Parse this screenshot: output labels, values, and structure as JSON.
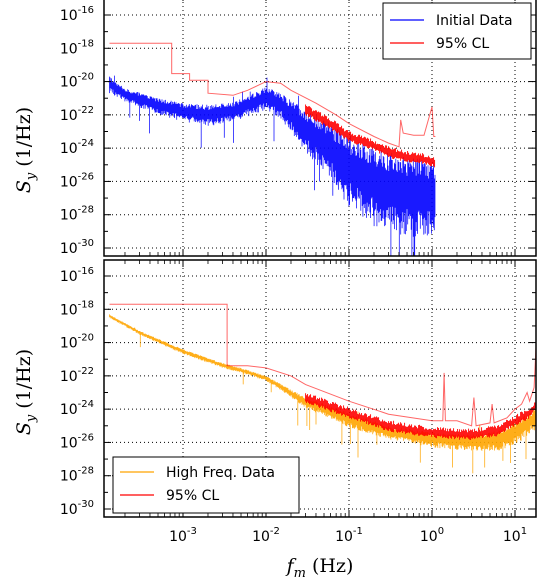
{
  "chart_data": [
    {
      "type": "line",
      "panel": "top",
      "xscale": "log",
      "yscale": "log",
      "xlim": [
        0.00013,
        1.2
      ],
      "ylim": [
        1e-30,
        1e-16
      ],
      "ylabel": "S_y (1/Hz)",
      "grid": true,
      "legend_position": "top-right",
      "y_ticks": [
        "10^-16",
        "10^-18",
        "10^-20",
        "10^-22",
        "10^-24",
        "10^-26",
        "10^-28",
        "10^-30"
      ],
      "series": [
        {
          "name": "Initial Data",
          "color": "#0000ff",
          "upper": [
            [
              0.00013,
              2e-20
            ],
            [
              0.0002,
              4e-21
            ],
            [
              0.0005,
              1e-21
            ],
            [
              0.001,
              5e-22
            ],
            [
              0.002,
              4e-22
            ],
            [
              0.004,
              6e-22
            ],
            [
              0.007,
              2e-21
            ],
            [
              0.01,
              5e-21
            ],
            [
              0.015,
              2e-21
            ],
            [
              0.03,
              2e-22
            ],
            [
              0.06,
              3e-23
            ],
            [
              0.1,
              5e-24
            ],
            [
              0.2,
              1.5e-24
            ],
            [
              0.3,
              6e-25
            ],
            [
              0.4,
              4e-25
            ],
            [
              0.7,
              2.5e-25
            ],
            [
              1.1,
              1.5e-25
            ]
          ],
          "lower": [
            [
              0.00013,
              2e-21
            ],
            [
              0.0002,
              6e-22
            ],
            [
              0.0005,
              1e-22
            ],
            [
              0.001,
              4e-23
            ],
            [
              0.002,
              2e-23
            ],
            [
              0.004,
              4e-23
            ],
            [
              0.007,
              1e-22
            ],
            [
              0.01,
              2e-22
            ],
            [
              0.015,
              6e-23
            ],
            [
              0.03,
              6e-25
            ],
            [
              0.06,
              1e-26
            ],
            [
              0.1,
              3e-28
            ],
            [
              0.2,
              2e-29
            ],
            [
              0.3,
              1e-29
            ],
            [
              0.5,
              5e-30
            ],
            [
              1.1,
              4e-30
            ]
          ]
        },
        {
          "name": "95% CL",
          "color": "#ff0000",
          "points": [
            [
              0.00013,
              2e-18
            ],
            [
              0.00073,
              2e-18
            ],
            [
              0.00073,
              3e-20
            ],
            [
              0.0012,
              3e-20
            ],
            [
              0.0012,
              1.2e-20
            ],
            [
              0.002,
              1.2e-20
            ],
            [
              0.002,
              2e-21
            ],
            [
              0.004,
              1.5e-21
            ],
            [
              0.006,
              3e-21
            ],
            [
              0.01,
              1e-20
            ],
            [
              0.015,
              8e-21
            ],
            [
              0.02,
              3e-21
            ],
            [
              0.04,
              5e-22
            ],
            [
              0.07,
              1e-22
            ],
            [
              0.1,
              3e-23
            ],
            [
              0.2,
              5e-24
            ],
            [
              0.3,
              2e-24
            ],
            [
              0.4,
              1.2e-24
            ],
            [
              0.42,
              5e-23
            ],
            [
              0.45,
              8e-24
            ],
            [
              0.6,
              6e-24
            ],
            [
              0.8,
              6e-24
            ],
            [
              1.0,
              3e-22
            ],
            [
              1.05,
              5e-24
            ],
            [
              1.1,
              5e-24
            ]
          ]
        }
      ]
    },
    {
      "type": "line",
      "panel": "bottom",
      "xscale": "log",
      "yscale": "log",
      "xlim": [
        0.00013,
        18
      ],
      "ylim": [
        1e-30,
        1e-16
      ],
      "xlabel": "f_m (Hz)",
      "ylabel": "S_y (1/Hz)",
      "grid": true,
      "legend_position": "bottom-left",
      "x_ticks": [
        "10^-3",
        "10^-2",
        "10^-1",
        "10^0",
        "10^1"
      ],
      "y_ticks": [
        "10^-16",
        "10^-18",
        "10^-20",
        "10^-22",
        "10^-24",
        "10^-26",
        "10^-28",
        "10^-30"
      ],
      "series": [
        {
          "name": "High Freq. Data",
          "color": "#ffa500",
          "upper": [
            [
              0.00013,
              5e-19
            ],
            [
              0.0003,
              5e-20
            ],
            [
              0.001,
              4e-21
            ],
            [
              0.003,
              6e-22
            ],
            [
              0.005,
              3e-22
            ],
            [
              0.01,
              1e-22
            ],
            [
              0.03,
              5e-24
            ],
            [
              0.1,
              6e-25
            ],
            [
              0.3,
              1e-25
            ],
            [
              1,
              4e-26
            ],
            [
              3,
              3e-26
            ],
            [
              6,
              5e-26
            ],
            [
              10,
              2e-25
            ],
            [
              15,
              6e-25
            ],
            [
              18,
              2e-24
            ]
          ],
          "lower": [
            [
              0.00013,
              3e-19
            ],
            [
              0.0003,
              3e-20
            ],
            [
              0.001,
              2e-21
            ],
            [
              0.003,
              3e-22
            ],
            [
              0.005,
              1.5e-22
            ],
            [
              0.01,
              5e-23
            ],
            [
              0.03,
              1.2e-24
            ],
            [
              0.1,
              8e-26
            ],
            [
              0.3,
              1.5e-26
            ],
            [
              1,
              5e-27
            ],
            [
              3,
              3e-27
            ],
            [
              6,
              3e-27
            ],
            [
              10,
              6e-27
            ],
            [
              15,
              3e-26
            ],
            [
              18,
              6e-26
            ]
          ]
        },
        {
          "name": "95% CL",
          "color": "#ff0000",
          "points": [
            [
              0.00013,
              2e-18
            ],
            [
              0.0034,
              2e-18
            ],
            [
              0.0034,
              4e-22
            ],
            [
              0.006,
              4e-22
            ],
            [
              0.01,
              3e-22
            ],
            [
              0.02,
              1e-22
            ],
            [
              0.03,
              3e-23
            ],
            [
              0.1,
              3e-24
            ],
            [
              0.3,
              5e-25
            ],
            [
              1,
              2e-25
            ],
            [
              1.35,
              2e-25
            ],
            [
              1.4,
              1.5e-22
            ],
            [
              1.45,
              2e-25
            ],
            [
              2,
              2e-25
            ],
            [
              3,
              1e-25
            ],
            [
              3.2,
              5e-24
            ],
            [
              3.4,
              1e-25
            ],
            [
              5,
              1.5e-25
            ],
            [
              5.3,
              2e-24
            ],
            [
              5.6,
              1.5e-25
            ],
            [
              8,
              3e-25
            ],
            [
              10,
              1e-24
            ],
            [
              12,
              2e-24
            ],
            [
              14,
              1e-23
            ],
            [
              15,
              3e-24
            ],
            [
              17,
              2e-23
            ],
            [
              18,
              1e-20
            ]
          ]
        }
      ]
    }
  ]
}
